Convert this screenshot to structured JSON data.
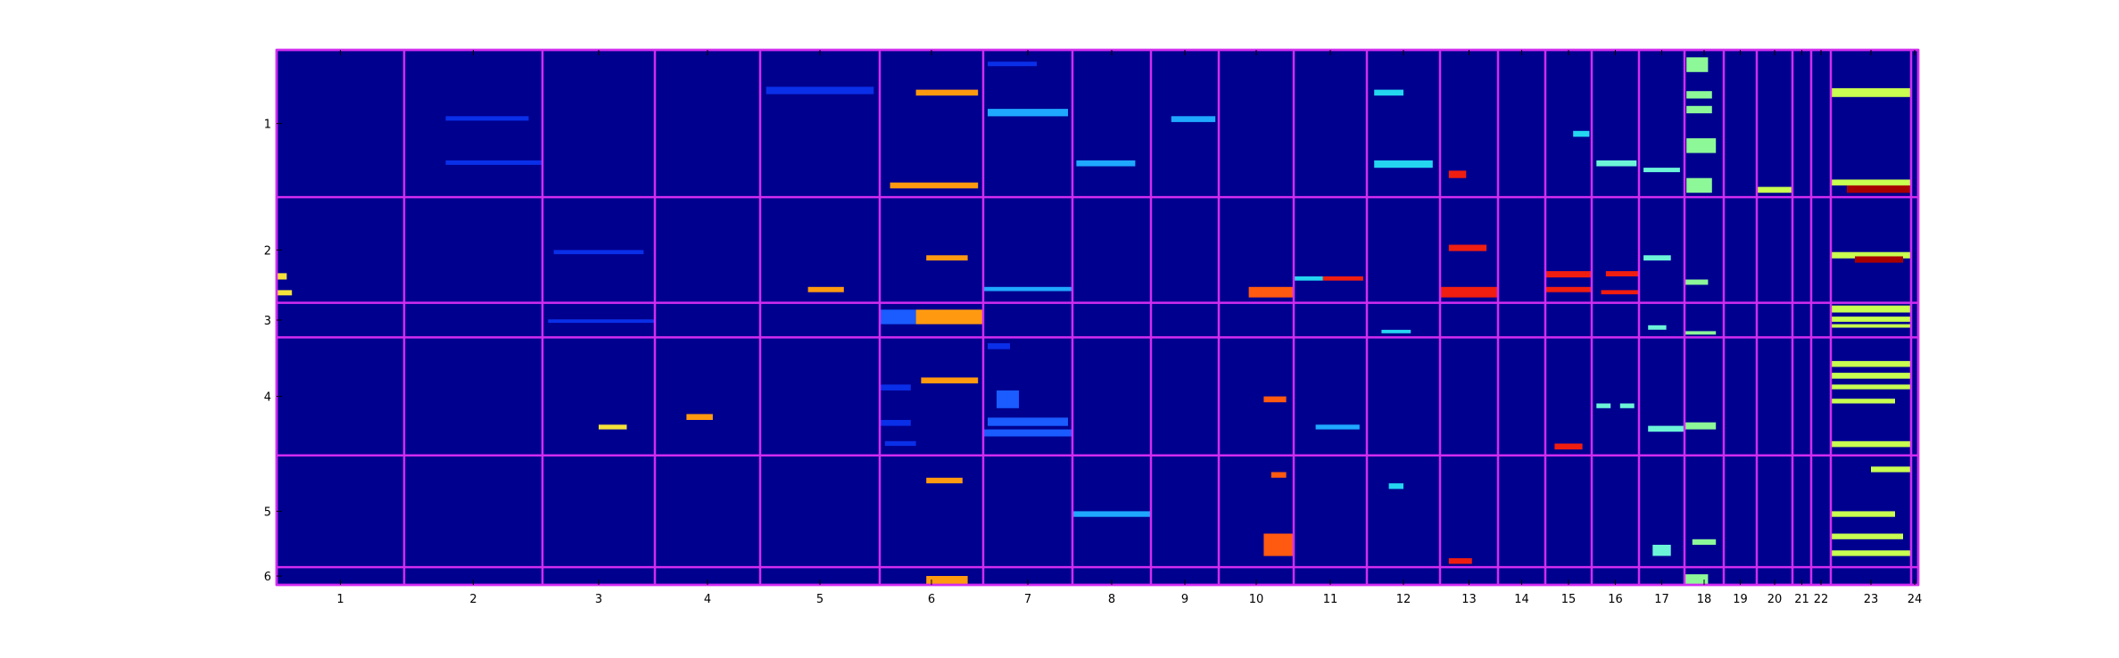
{
  "chart_data": {
    "type": "heatmap",
    "title": "",
    "xlabel": "",
    "ylabel": "",
    "x_groups": [
      "1",
      "2",
      "3",
      "4",
      "5",
      "6",
      "7",
      "8",
      "9",
      "10",
      "11",
      "12",
      "13",
      "14",
      "15",
      "16",
      "17",
      "18",
      "19",
      "20",
      "21",
      "22",
      "23",
      "24"
    ],
    "x_group_widths": [
      143,
      155,
      126,
      118,
      134,
      116,
      100,
      88,
      76,
      84,
      82,
      82,
      65,
      53,
      52,
      53,
      51,
      44,
      37,
      40,
      21,
      22,
      90,
      8
    ],
    "y_groups": [
      "1",
      "2",
      "3",
      "4",
      "5",
      "6"
    ],
    "y_group_heights": [
      166,
      119,
      39,
      133,
      126,
      20
    ],
    "grid_color": "#d22cf0",
    "background_color": "#00008f",
    "colormap": "jet",
    "colors": {
      "blue": "#0a2fe8",
      "mid_blue": "#1a5cff",
      "light_blue": "#1fa8ff",
      "cyan": "#24d6f0",
      "aqua": "#6cf4d8",
      "green": "#8cf898",
      "yellow_green": "#c8ff50",
      "yellow": "#f5e23a",
      "orange": "#ff9a10",
      "orange_red": "#ff5a10",
      "red": "#f01e10",
      "dark_red": "#a80000"
    },
    "blocks": [
      {
        "x": "5",
        "y": "1",
        "value": "blue",
        "c": [
          0.05,
          0.95
        ],
        "r": [
          0.25,
          0.3
        ]
      },
      {
        "x": "6",
        "y": "1",
        "value": "orange",
        "c": [
          0.35,
          0.95
        ],
        "r": [
          0.27,
          0.31
        ]
      },
      {
        "x": "6",
        "y": "1",
        "value": "orange",
        "c": [
          0.1,
          0.95
        ],
        "r": [
          0.9,
          0.94
        ]
      },
      {
        "x": "7",
        "y": "1",
        "value": "light_blue",
        "c": [
          0.05,
          0.95
        ],
        "r": [
          0.4,
          0.45
        ]
      },
      {
        "x": "7",
        "y": "1",
        "value": "blue",
        "c": [
          0.05,
          0.6
        ],
        "r": [
          0.08,
          0.11
        ]
      },
      {
        "x": "2",
        "y": "1",
        "value": "blue",
        "c": [
          0.3,
          1
        ],
        "r": [
          0.75,
          0.78
        ]
      },
      {
        "x": "2",
        "y": "1",
        "value": "blue",
        "c": [
          0.3,
          0.9
        ],
        "r": [
          0.45,
          0.48
        ]
      },
      {
        "x": "8",
        "y": "1",
        "value": "light_blue",
        "c": [
          0.05,
          0.8
        ],
        "r": [
          0.75,
          0.79
        ]
      },
      {
        "x": "9",
        "y": "1",
        "value": "light_blue",
        "c": [
          0.3,
          0.95
        ],
        "r": [
          0.45,
          0.49
        ]
      },
      {
        "x": "12",
        "y": "1",
        "value": "cyan",
        "c": [
          0.1,
          0.9
        ],
        "r": [
          0.75,
          0.8
        ]
      },
      {
        "x": "12",
        "y": "1",
        "value": "cyan",
        "c": [
          0.1,
          0.5
        ],
        "r": [
          0.27,
          0.31
        ]
      },
      {
        "x": "15",
        "y": "1",
        "value": "cyan",
        "c": [
          0.6,
          0.95
        ],
        "r": [
          0.55,
          0.59
        ]
      },
      {
        "x": "16",
        "y": "1",
        "value": "aqua",
        "c": [
          0.1,
          0.95
        ],
        "r": [
          0.75,
          0.79
        ]
      },
      {
        "x": "17",
        "y": "1",
        "value": "aqua",
        "c": [
          0.1,
          0.9
        ],
        "r": [
          0.8,
          0.83
        ]
      },
      {
        "x": "18",
        "y": "1",
        "value": "green",
        "c": [
          0.05,
          0.6
        ],
        "r": [
          0.05,
          0.15
        ]
      },
      {
        "x": "18",
        "y": "1",
        "value": "green",
        "c": [
          0.05,
          0.7
        ],
        "r": [
          0.28,
          0.33
        ]
      },
      {
        "x": "18",
        "y": "1",
        "value": "green",
        "c": [
          0.05,
          0.7
        ],
        "r": [
          0.38,
          0.43
        ]
      },
      {
        "x": "18",
        "y": "1",
        "value": "green",
        "c": [
          0.05,
          0.8
        ],
        "r": [
          0.6,
          0.7
        ]
      },
      {
        "x": "18",
        "y": "1",
        "value": "green",
        "c": [
          0.05,
          0.7
        ],
        "r": [
          0.87,
          0.97
        ]
      },
      {
        "x": "20",
        "y": "1",
        "value": "yellow_green",
        "c": [
          0,
          1
        ],
        "r": [
          0.93,
          0.97
        ]
      },
      {
        "x": "23",
        "y": "1",
        "value": "yellow_green",
        "c": [
          0,
          1
        ],
        "r": [
          0.26,
          0.32
        ]
      },
      {
        "x": "23",
        "y": "1",
        "value": "yellow_green",
        "c": [
          0,
          1
        ],
        "r": [
          0.88,
          0.92
        ]
      },
      {
        "x": "23",
        "y": "1",
        "value": "dark_red",
        "c": [
          0.2,
          1
        ],
        "r": [
          0.92,
          0.97
        ]
      },
      {
        "x": "13",
        "y": "1",
        "value": "red",
        "c": [
          0.15,
          0.45
        ],
        "r": [
          0.82,
          0.87
        ]
      },
      {
        "x": "13",
        "y": "2",
        "value": "red",
        "c": [
          0.15,
          0.8
        ],
        "r": [
          0.45,
          0.51
        ]
      },
      {
        "x": "13",
        "y": "2",
        "value": "red",
        "c": [
          0,
          1
        ],
        "r": [
          0.85,
          0.95
        ]
      },
      {
        "x": "15",
        "y": "2",
        "value": "red",
        "c": [
          0,
          1
        ],
        "r": [
          0.7,
          0.76
        ]
      },
      {
        "x": "15",
        "y": "2",
        "value": "red",
        "c": [
          0,
          1
        ],
        "r": [
          0.85,
          0.9
        ]
      },
      {
        "x": "16",
        "y": "2",
        "value": "red",
        "c": [
          0.3,
          1
        ],
        "r": [
          0.7,
          0.75
        ]
      },
      {
        "x": "16",
        "y": "2",
        "value": "red",
        "c": [
          0.2,
          1
        ],
        "r": [
          0.88,
          0.92
        ]
      },
      {
        "x": "11",
        "y": "2",
        "value": "cyan",
        "c": [
          0,
          0.4
        ],
        "r": [
          0.75,
          0.79
        ]
      },
      {
        "x": "11",
        "y": "2",
        "value": "red",
        "c": [
          0.4,
          0.95
        ],
        "r": [
          0.75,
          0.79
        ]
      },
      {
        "x": "6",
        "y": "2",
        "value": "orange",
        "c": [
          0.45,
          0.85
        ],
        "r": [
          0.55,
          0.6
        ]
      },
      {
        "x": "5",
        "y": "2",
        "value": "orange",
        "c": [
          0.4,
          0.7
        ],
        "r": [
          0.85,
          0.9
        ]
      },
      {
        "x": "7",
        "y": "2",
        "value": "light_blue",
        "c": [
          0,
          1
        ],
        "r": [
          0.85,
          0.89
        ]
      },
      {
        "x": "3",
        "y": "2",
        "value": "blue",
        "c": [
          0.1,
          0.9
        ],
        "r": [
          0.5,
          0.54
        ]
      },
      {
        "x": "17",
        "y": "2",
        "value": "aqua",
        "c": [
          0.1,
          0.7
        ],
        "r": [
          0.55,
          0.6
        ]
      },
      {
        "x": "18",
        "y": "2",
        "value": "green",
        "c": [
          0,
          0.6
        ],
        "r": [
          0.78,
          0.83
        ]
      },
      {
        "x": "23",
        "y": "2",
        "value": "yellow_green",
        "c": [
          0,
          1
        ],
        "r": [
          0.52,
          0.58
        ]
      },
      {
        "x": "23",
        "y": "2",
        "value": "dark_red",
        "c": [
          0.3,
          0.9
        ],
        "r": [
          0.56,
          0.62
        ]
      },
      {
        "x": "1",
        "y": "2",
        "value": "yellow",
        "c": [
          0,
          0.08
        ],
        "r": [
          0.72,
          0.78
        ]
      },
      {
        "x": "1",
        "y": "2",
        "value": "yellow",
        "c": [
          0,
          0.12
        ],
        "r": [
          0.88,
          0.93
        ]
      },
      {
        "x": "10",
        "y": "2",
        "value": "orange_red",
        "c": [
          0.4,
          1
        ],
        "r": [
          0.85,
          0.95
        ]
      },
      {
        "x": "6",
        "y": "3",
        "value": "mid_blue",
        "c": [
          0,
          0.35
        ],
        "r": [
          0.2,
          0.62
        ]
      },
      {
        "x": "6",
        "y": "3",
        "value": "orange",
        "c": [
          0.35,
          1
        ],
        "r": [
          0.2,
          0.62
        ]
      },
      {
        "x": "3",
        "y": "3",
        "value": "blue",
        "c": [
          0.05,
          1
        ],
        "r": [
          0.48,
          0.58
        ]
      },
      {
        "x": "12",
        "y": "3",
        "value": "cyan",
        "c": [
          0.2,
          0.6
        ],
        "r": [
          0.78,
          0.88
        ]
      },
      {
        "x": "17",
        "y": "3",
        "value": "aqua",
        "c": [
          0.2,
          0.6
        ],
        "r": [
          0.65,
          0.78
        ]
      },
      {
        "x": "18",
        "y": "3",
        "value": "green",
        "c": [
          0,
          0.8
        ],
        "r": [
          0.82,
          0.92
        ]
      },
      {
        "x": "23",
        "y": "3",
        "value": "yellow_green",
        "c": [
          0,
          1
        ],
        "r": [
          0.08,
          0.28
        ]
      },
      {
        "x": "23",
        "y": "3",
        "value": "yellow_green",
        "c": [
          0,
          1
        ],
        "r": [
          0.4,
          0.55
        ]
      },
      {
        "x": "23",
        "y": "3",
        "value": "yellow_green",
        "c": [
          0,
          1
        ],
        "r": [
          0.62,
          0.72
        ]
      },
      {
        "x": "7",
        "y": "4",
        "value": "mid_blue",
        "c": [
          0.15,
          0.4
        ],
        "r": [
          0.45,
          0.6
        ]
      },
      {
        "x": "7",
        "y": "4",
        "value": "mid_blue",
        "c": [
          0.05,
          0.95
        ],
        "r": [
          0.68,
          0.75
        ]
      },
      {
        "x": "7",
        "y": "4",
        "value": "mid_blue",
        "c": [
          0,
          1
        ],
        "r": [
          0.78,
          0.84
        ]
      },
      {
        "x": "7",
        "y": "4",
        "value": "blue",
        "c": [
          0.05,
          0.3
        ],
        "r": [
          0.05,
          0.1
        ]
      },
      {
        "x": "6",
        "y": "4",
        "value": "orange",
        "c": [
          0.4,
          0.95
        ],
        "r": [
          0.34,
          0.39
        ]
      },
      {
        "x": "6",
        "y": "4",
        "value": "blue",
        "c": [
          0,
          0.3
        ],
        "r": [
          0.4,
          0.45
        ]
      },
      {
        "x": "6",
        "y": "4",
        "value": "blue",
        "c": [
          0,
          0.3
        ],
        "r": [
          0.7,
          0.75
        ]
      },
      {
        "x": "6",
        "y": "4",
        "value": "blue",
        "c": [
          0.05,
          0.35
        ],
        "r": [
          0.88,
          0.92
        ]
      },
      {
        "x": "4",
        "y": "4",
        "value": "orange",
        "c": [
          0.3,
          0.55
        ],
        "r": [
          0.65,
          0.7
        ]
      },
      {
        "x": "3",
        "y": "4",
        "value": "yellow",
        "c": [
          0.5,
          0.75
        ],
        "r": [
          0.74,
          0.78
        ]
      },
      {
        "x": "11",
        "y": "4",
        "value": "light_blue",
        "c": [
          0.3,
          0.9
        ],
        "r": [
          0.74,
          0.78
        ]
      },
      {
        "x": "16",
        "y": "4",
        "value": "aqua",
        "c": [
          0.1,
          0.4
        ],
        "r": [
          0.56,
          0.6
        ]
      },
      {
        "x": "16",
        "y": "4",
        "value": "aqua",
        "c": [
          0.6,
          0.9
        ],
        "r": [
          0.56,
          0.6
        ]
      },
      {
        "x": "17",
        "y": "4",
        "value": "aqua",
        "c": [
          0.2,
          1
        ],
        "r": [
          0.75,
          0.8
        ]
      },
      {
        "x": "18",
        "y": "4",
        "value": "green",
        "c": [
          0,
          0.8
        ],
        "r": [
          0.72,
          0.78
        ]
      },
      {
        "x": "23",
        "y": "4",
        "value": "yellow_green",
        "c": [
          0,
          1
        ],
        "r": [
          0.2,
          0.25
        ]
      },
      {
        "x": "23",
        "y": "4",
        "value": "yellow_green",
        "c": [
          0,
          1
        ],
        "r": [
          0.3,
          0.35
        ]
      },
      {
        "x": "23",
        "y": "4",
        "value": "yellow_green",
        "c": [
          0,
          1
        ],
        "r": [
          0.4,
          0.44
        ]
      },
      {
        "x": "23",
        "y": "4",
        "value": "yellow_green",
        "c": [
          0,
          0.8
        ],
        "r": [
          0.52,
          0.56
        ]
      },
      {
        "x": "23",
        "y": "4",
        "value": "yellow_green",
        "c": [
          0,
          1
        ],
        "r": [
          0.88,
          0.93
        ]
      },
      {
        "x": "10",
        "y": "4",
        "value": "orange_red",
        "c": [
          0.6,
          0.9
        ],
        "r": [
          0.5,
          0.55
        ]
      },
      {
        "x": "15",
        "y": "4",
        "value": "red",
        "c": [
          0.2,
          0.8
        ],
        "r": [
          0.9,
          0.95
        ]
      },
      {
        "x": "8",
        "y": "5",
        "value": "light_blue",
        "c": [
          0,
          1
        ],
        "r": [
          0.5,
          0.55
        ]
      },
      {
        "x": "6",
        "y": "5",
        "value": "orange",
        "c": [
          0.45,
          0.8
        ],
        "r": [
          0.2,
          0.25
        ]
      },
      {
        "x": "10",
        "y": "5",
        "value": "orange_red",
        "c": [
          0.6,
          1
        ],
        "r": [
          0.7,
          0.9
        ]
      },
      {
        "x": "10",
        "y": "5",
        "value": "orange_red",
        "c": [
          0.7,
          0.9
        ],
        "r": [
          0.15,
          0.2
        ]
      },
      {
        "x": "17",
        "y": "5",
        "value": "aqua",
        "c": [
          0.3,
          0.7
        ],
        "r": [
          0.8,
          0.9
        ]
      },
      {
        "x": "18",
        "y": "5",
        "value": "green",
        "c": [
          0.2,
          0.8
        ],
        "r": [
          0.75,
          0.8
        ]
      },
      {
        "x": "23",
        "y": "5",
        "value": "yellow_green",
        "c": [
          0.5,
          1
        ],
        "r": [
          0.1,
          0.15
        ]
      },
      {
        "x": "23",
        "y": "5",
        "value": "yellow_green",
        "c": [
          0,
          0.8
        ],
        "r": [
          0.5,
          0.55
        ]
      },
      {
        "x": "23",
        "y": "5",
        "value": "yellow_green",
        "c": [
          0,
          0.9
        ],
        "r": [
          0.7,
          0.75
        ]
      },
      {
        "x": "23",
        "y": "5",
        "value": "yellow_green",
        "c": [
          0,
          1
        ],
        "r": [
          0.85,
          0.9
        ]
      },
      {
        "x": "13",
        "y": "5",
        "value": "red",
        "c": [
          0.15,
          0.55
        ],
        "r": [
          0.92,
          0.97
        ]
      },
      {
        "x": "12",
        "y": "5",
        "value": "cyan",
        "c": [
          0.3,
          0.5
        ],
        "r": [
          0.25,
          0.3
        ]
      },
      {
        "x": "6",
        "y": "6",
        "value": "orange",
        "c": [
          0.45,
          0.85
        ],
        "r": [
          0.5,
          1
        ]
      },
      {
        "x": "18",
        "y": "6",
        "value": "green",
        "c": [
          0,
          0.6
        ],
        "r": [
          0.4,
          1
        ]
      }
    ]
  }
}
